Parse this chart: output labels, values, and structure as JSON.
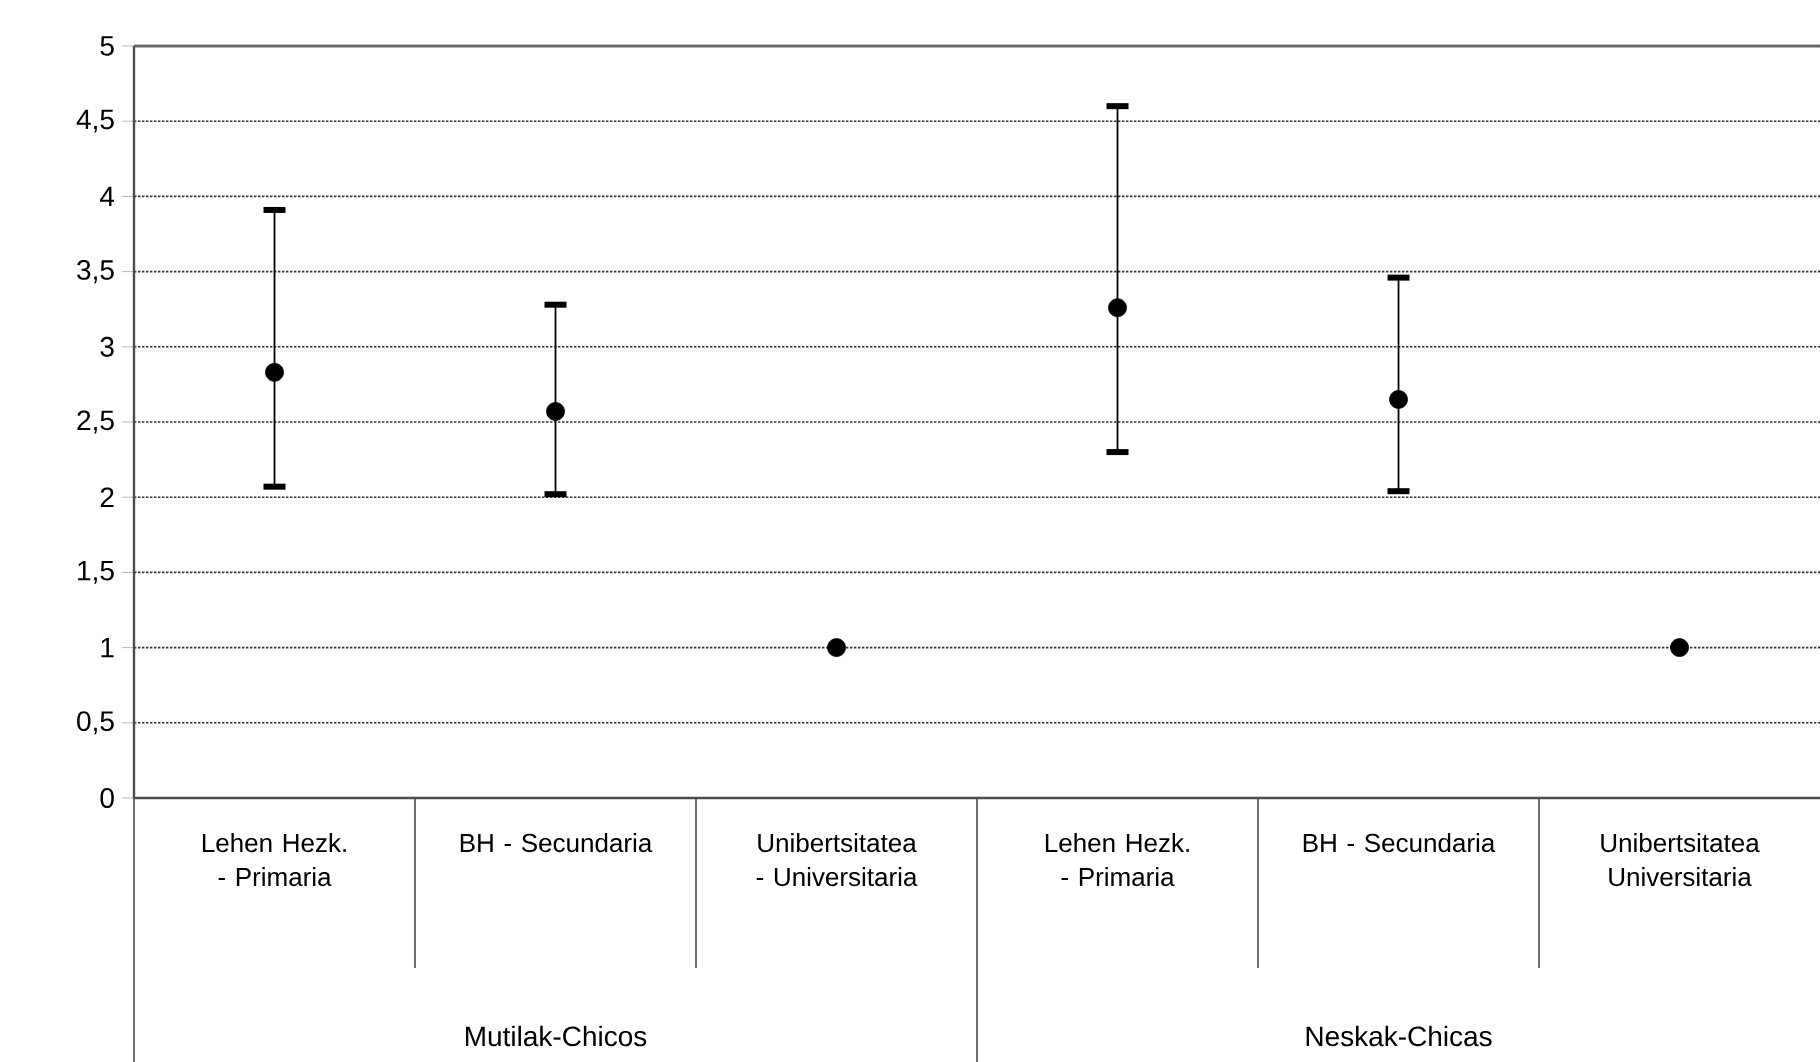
{
  "chart_data": {
    "type": "scatter",
    "categories": [
      "Lehen Hezk. - Primaria",
      "BH - Secundaria",
      "Unibertsitatea - Universitaria",
      "Lehen Hezk. - Primaria",
      "BH - Secundaria",
      "Unibertsitatea Universitaria"
    ],
    "series": [
      {
        "color": "#000000",
        "values": [
          2.83,
          2.57,
          1,
          3.26,
          2.65,
          1
        ],
        "errors": [
          [
            2.07,
            3.91
          ],
          [
            2.02,
            3.28
          ],
          null,
          [
            2.3,
            4.6
          ],
          [
            2.04,
            3.46
          ],
          null
        ]
      }
    ],
    "ylim": [
      0,
      5
    ],
    "yticks": [
      0,
      {
        "value": 0.5,
        "label": "0,5"
      },
      1,
      {
        "value": 1.5,
        "label": "1,5"
      },
      2,
      {
        "value": 2.5,
        "label": "2,5"
      },
      3,
      {
        "value": 3.5,
        "label": "3,5"
      },
      4,
      {
        "value": 4.5,
        "label": "4,5"
      },
      5
    ],
    "grid": "y",
    "marker": "circle",
    "annotations": [
      "Mutilak-Chicos",
      "Neskak-Chicas"
    ]
  }
}
